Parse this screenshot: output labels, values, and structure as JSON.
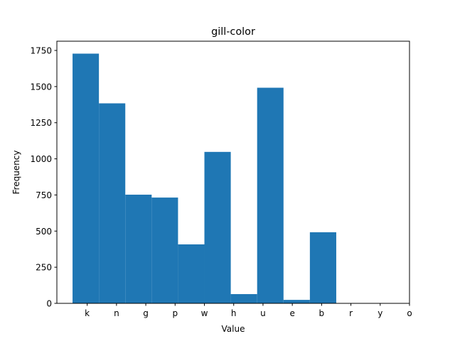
{
  "chart_data": {
    "type": "bar",
    "title": "gill-color",
    "xlabel": "Value",
    "ylabel": "Frequency",
    "categories": [
      "k",
      "n",
      "g",
      "p",
      "w",
      "h",
      "u",
      "e",
      "b",
      "r",
      "y",
      "o"
    ],
    "bins": [
      {
        "x0": -0.5,
        "x1": 0.4,
        "value": 1728
      },
      {
        "x0": 0.4,
        "x1": 1.3,
        "value": 1384
      },
      {
        "x0": 1.3,
        "x1": 2.2,
        "value": 752
      },
      {
        "x0": 2.2,
        "x1": 3.1,
        "value": 732
      },
      {
        "x0": 3.1,
        "x1": 4.0,
        "value": 408
      },
      {
        "x0": 4.0,
        "x1": 4.9,
        "value": 1048
      },
      {
        "x0": 4.9,
        "x1": 5.8,
        "value": 64
      },
      {
        "x0": 5.8,
        "x1": 6.7,
        "value": 1492
      },
      {
        "x0": 6.7,
        "x1": 7.6,
        "value": 24
      },
      {
        "x0": 7.6,
        "x1": 8.5,
        "value": 492
      },
      {
        "x0": 8.5,
        "x1": 9.4,
        "value": 0
      },
      {
        "x0": 9.4,
        "x1": 10.3,
        "value": 0
      },
      {
        "x0": 10.3,
        "x1": 11.2,
        "value": 0
      }
    ],
    "yticks": [
      0,
      250,
      500,
      750,
      1000,
      1250,
      1500,
      1750
    ],
    "ylim": [
      0,
      1814
    ],
    "xlim": [
      -1.035,
      11.0
    ],
    "bar_color": "#1f77b4",
    "grid": false,
    "legend": false
  }
}
